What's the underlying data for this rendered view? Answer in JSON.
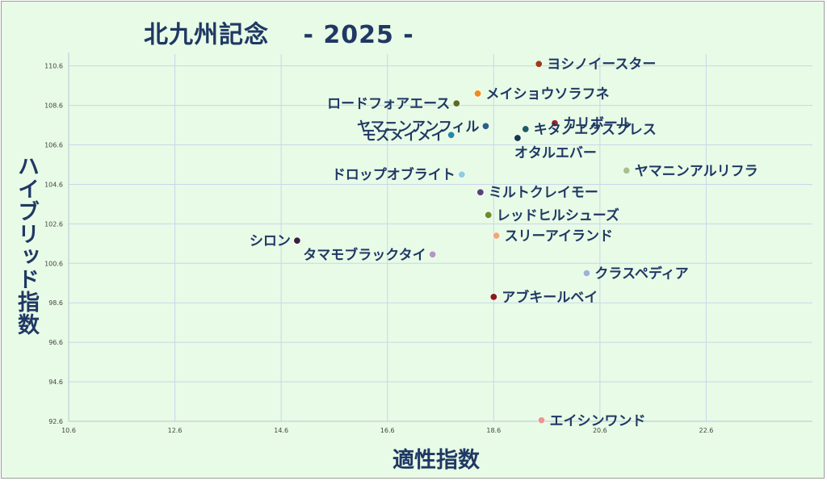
{
  "chart_data": {
    "type": "scatter",
    "title": "北九州記念　 - 2025 -",
    "xlabel": "適性指数",
    "ylabel": "ハイブリッド指数",
    "xlim": [
      10.6,
      24.6
    ],
    "ylim": [
      92.6,
      111.2
    ],
    "x_ticks": [
      "10.6",
      "12.6",
      "14.6",
      "16.6",
      "18.6",
      "20.6",
      "22.6"
    ],
    "y_ticks": [
      "92.6",
      "94.6",
      "96.6",
      "98.6",
      "100.6",
      "102.6",
      "104.6",
      "106.6",
      "108.6",
      "110.6"
    ],
    "grid": true,
    "points": [
      {
        "name": "ヨシノイースター",
        "x": 19.45,
        "y": 110.7,
        "color": "#9c3d14"
      },
      {
        "name": "メイショウソラフネ",
        "x": 18.3,
        "y": 109.2,
        "color": "#f08c1a"
      },
      {
        "name": "ロードフォアエース",
        "x": 17.9,
        "y": 108.7,
        "color": "#5e6b23"
      },
      {
        "name": "カリボール",
        "x": 19.75,
        "y": 107.7,
        "color": "#a32424"
      },
      {
        "name": "ヤマニンアンフィル",
        "x": 18.45,
        "y": 107.55,
        "color": "#2c5f8a"
      },
      {
        "name": "キタノエクスプレス",
        "x": 19.2,
        "y": 107.4,
        "color": "#1f5b63"
      },
      {
        "name": "オタルエバー",
        "x": 19.05,
        "y": 106.95,
        "color": "#16364f"
      },
      {
        "name": "モズメイメイ",
        "x": 17.8,
        "y": 107.1,
        "color": "#2a87a6"
      },
      {
        "name": "ヤマニンアルリフラ",
        "x": 21.1,
        "y": 105.3,
        "color": "#a8c090"
      },
      {
        "name": "ドロップオブライト",
        "x": 18.0,
        "y": 105.1,
        "color": "#8ccfe0"
      },
      {
        "name": "ミルトクレイモー",
        "x": 18.35,
        "y": 104.2,
        "color": "#5a4279"
      },
      {
        "name": "レッドヒルシューズ",
        "x": 18.5,
        "y": 103.05,
        "color": "#6e8a2a"
      },
      {
        "name": "シロン",
        "x": 14.9,
        "y": 101.75,
        "color": "#3a1f3f"
      },
      {
        "name": "スリーアイランド",
        "x": 18.65,
        "y": 102.0,
        "color": "#f0a878"
      },
      {
        "name": "タマモブラックタイ",
        "x": 17.45,
        "y": 101.05,
        "color": "#b896c4"
      },
      {
        "name": "クラスペディア",
        "x": 20.35,
        "y": 100.1,
        "color": "#9cb4d8"
      },
      {
        "name": "アブキールベイ",
        "x": 18.6,
        "y": 98.9,
        "color": "#8a1a1a"
      },
      {
        "name": "エイシンワンド",
        "x": 19.5,
        "y": 92.65,
        "color": "#e89890"
      }
    ]
  }
}
